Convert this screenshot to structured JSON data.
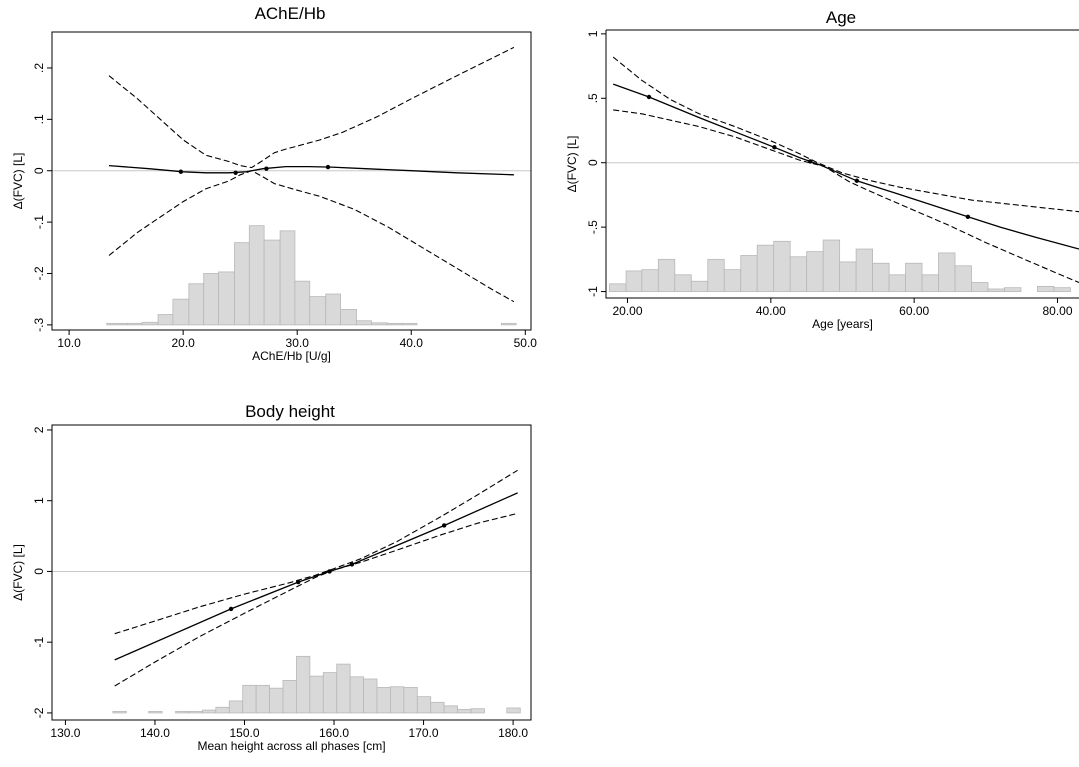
{
  "chart_data": [
    {
      "type": "line",
      "title": "AChE/Hb",
      "xlabel": "AChE/Hb [U/g]",
      "ylabel": "Δ(FVC) [L]",
      "xlim": [
        8.5,
        50.5
      ],
      "ylim": [
        -0.31,
        0.27
      ],
      "xticks": [
        10.0,
        20.0,
        30.0,
        40.0,
        50.0
      ],
      "xtick_labels": [
        "10.0",
        "20.0",
        "30.0",
        "40.0",
        "50.0"
      ],
      "yticks": [
        -0.3,
        -0.2,
        -0.1,
        0,
        0.1,
        0.2
      ],
      "ytick_labels": [
        "-.3",
        "-.2",
        "-.1",
        "0",
        ".1",
        ".2"
      ],
      "zero_line": 0,
      "series": [
        {
          "role": "fit",
          "x": [
            13.5,
            17,
            20,
            22,
            24,
            25.5,
            27,
            29,
            31,
            33,
            36,
            40,
            44,
            49
          ],
          "y": [
            0.01,
            0.004,
            -0.002,
            -0.004,
            -0.004,
            -0.002,
            0.004,
            0.008,
            0.008,
            0.007,
            0.004,
            0.0,
            -0.004,
            -0.008
          ]
        },
        {
          "role": "upper",
          "x": [
            13.5,
            16,
            18,
            20,
            22,
            24,
            25,
            26,
            27,
            28,
            29,
            30,
            32,
            34,
            37,
            40,
            44,
            49
          ],
          "y": [
            0.185,
            0.14,
            0.1,
            0.06,
            0.03,
            0.018,
            0.01,
            0.006,
            0.02,
            0.035,
            0.042,
            0.048,
            0.06,
            0.075,
            0.105,
            0.14,
            0.185,
            0.24
          ]
        },
        {
          "role": "lower",
          "x": [
            13.5,
            16,
            18,
            20,
            22,
            24,
            25,
            26,
            27,
            28,
            30,
            32,
            35,
            38,
            41,
            44,
            47,
            49
          ],
          "y": [
            -0.165,
            -0.12,
            -0.09,
            -0.06,
            -0.035,
            -0.02,
            -0.008,
            0.0,
            -0.012,
            -0.025,
            -0.038,
            -0.05,
            -0.075,
            -0.11,
            -0.15,
            -0.19,
            -0.23,
            -0.255
          ]
        }
      ],
      "knots": {
        "x": [
          19.8,
          24.6,
          27.3,
          32.7
        ],
        "y": [
          -0.002,
          -0.004,
          0.004,
          0.007
        ]
      },
      "histogram": {
        "base": -0.3,
        "bins": [
          [
            13.3,
            15.1,
            0.002
          ],
          [
            15.1,
            16.4,
            0.003
          ],
          [
            16.4,
            17.8,
            0.005
          ],
          [
            17.8,
            19.1,
            0.02
          ],
          [
            19.1,
            20.5,
            0.05
          ],
          [
            20.5,
            21.8,
            0.08
          ],
          [
            21.8,
            23.1,
            0.1
          ],
          [
            23.1,
            24.5,
            0.103
          ],
          [
            24.5,
            25.8,
            0.16
          ],
          [
            25.8,
            27.1,
            0.193
          ],
          [
            27.1,
            28.5,
            0.165
          ],
          [
            28.5,
            29.8,
            0.183
          ],
          [
            29.8,
            31.1,
            0.085
          ],
          [
            31.1,
            32.5,
            0.055
          ],
          [
            32.5,
            33.8,
            0.06
          ],
          [
            33.8,
            35.2,
            0.03
          ],
          [
            35.2,
            36.5,
            0.008
          ],
          [
            36.5,
            37.9,
            0.004
          ],
          [
            37.9,
            39.2,
            0.002
          ],
          [
            39.2,
            40.5,
            0.002
          ],
          [
            47.9,
            49.2,
            0.003
          ]
        ]
      }
    },
    {
      "type": "line",
      "title": "Age",
      "xlabel": "Age [years]",
      "ylabel": "Δ(FVC) [L]",
      "xlim": [
        17.0,
        83.0
      ],
      "ylim": [
        -1.05,
        1.03
      ],
      "xticks": [
        20.0,
        40.0,
        60.0,
        80.0
      ],
      "xtick_labels": [
        "20.00",
        "40.00",
        "60.00",
        "80.00"
      ],
      "yticks": [
        -1,
        -0.5,
        0,
        0.5,
        1
      ],
      "ytick_labels": [
        "-1",
        "-.5",
        "0",
        ".5",
        "1"
      ],
      "zero_line": 0,
      "series": [
        {
          "role": "fit",
          "x": [
            18,
            23,
            30,
            35,
            40.5,
            44,
            47,
            52,
            57,
            62,
            67.5,
            72,
            77,
            83
          ],
          "y": [
            0.61,
            0.51,
            0.35,
            0.24,
            0.12,
            0.04,
            -0.02,
            -0.14,
            -0.23,
            -0.32,
            -0.42,
            -0.5,
            -0.58,
            -0.67
          ]
        },
        {
          "role": "upper",
          "x": [
            18,
            22,
            26,
            30,
            35,
            40,
            44,
            46.5,
            50,
            54,
            58,
            63,
            68,
            73,
            78,
            83
          ],
          "y": [
            0.82,
            0.64,
            0.49,
            0.38,
            0.28,
            0.17,
            0.07,
            0.0,
            -0.08,
            -0.14,
            -0.19,
            -0.24,
            -0.29,
            -0.32,
            -0.35,
            -0.38
          ]
        },
        {
          "role": "lower",
          "x": [
            18,
            22,
            26,
            30,
            35,
            40,
            44,
            47.5,
            51,
            55,
            60,
            65,
            70,
            75,
            80,
            83
          ],
          "y": [
            0.41,
            0.38,
            0.33,
            0.28,
            0.2,
            0.1,
            0.02,
            -0.03,
            -0.15,
            -0.25,
            -0.37,
            -0.49,
            -0.62,
            -0.74,
            -0.86,
            -0.93
          ]
        }
      ],
      "knots": {
        "x": [
          23.0,
          40.5,
          45.5,
          52.0,
          67.5
        ],
        "y": [
          0.51,
          0.12,
          0.01,
          -0.14,
          -0.42
        ]
      },
      "histogram": {
        "base": -1.0,
        "bins": [
          [
            17.5,
            19.8,
            0.06
          ],
          [
            19.8,
            22.0,
            0.16
          ],
          [
            22.0,
            24.3,
            0.17
          ],
          [
            24.3,
            26.6,
            0.25
          ],
          [
            26.6,
            28.9,
            0.13
          ],
          [
            28.9,
            31.2,
            0.08
          ],
          [
            31.2,
            33.5,
            0.25
          ],
          [
            33.5,
            35.8,
            0.17
          ],
          [
            35.8,
            38.1,
            0.28
          ],
          [
            38.1,
            40.4,
            0.36
          ],
          [
            40.4,
            42.7,
            0.39
          ],
          [
            42.7,
            45.0,
            0.27
          ],
          [
            45.0,
            47.3,
            0.31
          ],
          [
            47.3,
            49.6,
            0.4
          ],
          [
            49.6,
            51.9,
            0.23
          ],
          [
            51.9,
            54.2,
            0.33
          ],
          [
            54.2,
            56.5,
            0.22
          ],
          [
            56.5,
            58.8,
            0.13
          ],
          [
            58.8,
            61.1,
            0.22
          ],
          [
            61.1,
            63.4,
            0.13
          ],
          [
            63.4,
            65.7,
            0.3
          ],
          [
            65.7,
            68.0,
            0.2
          ],
          [
            68.0,
            70.3,
            0.07
          ],
          [
            70.3,
            72.6,
            0.02
          ],
          [
            72.6,
            74.9,
            0.03
          ],
          [
            77.2,
            79.5,
            0.04
          ],
          [
            79.5,
            81.8,
            0.03
          ]
        ]
      }
    },
    {
      "type": "line",
      "title": "Body height",
      "xlabel": "Mean height across all phases [cm]",
      "ylabel": "Δ(FVC) [L]",
      "xlim": [
        128.5,
        182.0
      ],
      "ylim": [
        -2.1,
        2.07
      ],
      "xticks": [
        130.0,
        140.0,
        150.0,
        160.0,
        170.0,
        180.0
      ],
      "xtick_labels": [
        "130.0",
        "140.0",
        "150.0",
        "160.0",
        "170.0",
        "180.0"
      ],
      "yticks": [
        -2,
        -1,
        0,
        1,
        2
      ],
      "ytick_labels": [
        "-2",
        "-1",
        "0",
        "1",
        "2"
      ],
      "zero_line": 0,
      "series": [
        {
          "role": "fit",
          "x": [
            135.5,
            148.5,
            156,
            159.5,
            162,
            172.3,
            180.5
          ],
          "y": [
            -1.25,
            -0.53,
            -0.15,
            0.0,
            0.1,
            0.65,
            1.11
          ]
        },
        {
          "role": "upper",
          "x": [
            135.5,
            140,
            145,
            150,
            155,
            158,
            160,
            163,
            167,
            172,
            176,
            180.5
          ],
          "y": [
            -0.88,
            -0.7,
            -0.5,
            -0.32,
            -0.16,
            -0.05,
            0.04,
            0.18,
            0.42,
            0.78,
            1.08,
            1.43
          ]
        },
        {
          "role": "lower",
          "x": [
            135.5,
            140,
            145,
            150,
            155,
            158,
            160,
            163,
            167,
            172,
            176,
            180.5
          ],
          "y": [
            -1.62,
            -1.28,
            -0.92,
            -0.59,
            -0.27,
            -0.08,
            0.02,
            0.13,
            0.3,
            0.52,
            0.68,
            0.82
          ]
        }
      ],
      "knots": {
        "x": [
          148.5,
          156.0,
          159.5,
          162.0,
          172.3
        ],
        "y": [
          -0.53,
          -0.15,
          0.0,
          0.1,
          0.65
        ]
      },
      "histogram": {
        "base": -2.0,
        "bins": [
          [
            135.3,
            136.8,
            0.02
          ],
          [
            139.3,
            140.8,
            0.02
          ],
          [
            142.3,
            143.8,
            0.01
          ],
          [
            143.8,
            145.3,
            0.02
          ],
          [
            145.3,
            146.8,
            0.04
          ],
          [
            146.8,
            148.3,
            0.08
          ],
          [
            148.3,
            149.8,
            0.17
          ],
          [
            149.8,
            151.3,
            0.39
          ],
          [
            151.3,
            152.8,
            0.39
          ],
          [
            152.8,
            154.3,
            0.35
          ],
          [
            154.3,
            155.8,
            0.46
          ],
          [
            155.8,
            157.3,
            0.8
          ],
          [
            157.3,
            158.8,
            0.52
          ],
          [
            158.8,
            160.3,
            0.57
          ],
          [
            160.3,
            161.8,
            0.69
          ],
          [
            161.8,
            163.3,
            0.51
          ],
          [
            163.3,
            164.8,
            0.48
          ],
          [
            164.8,
            166.3,
            0.36
          ],
          [
            166.3,
            167.8,
            0.37
          ],
          [
            167.8,
            169.3,
            0.36
          ],
          [
            169.3,
            170.8,
            0.23
          ],
          [
            170.8,
            172.3,
            0.15
          ],
          [
            172.3,
            173.8,
            0.1
          ],
          [
            173.8,
            175.3,
            0.05
          ],
          [
            175.3,
            176.8,
            0.06
          ],
          [
            179.3,
            180.8,
            0.07
          ]
        ]
      }
    }
  ]
}
